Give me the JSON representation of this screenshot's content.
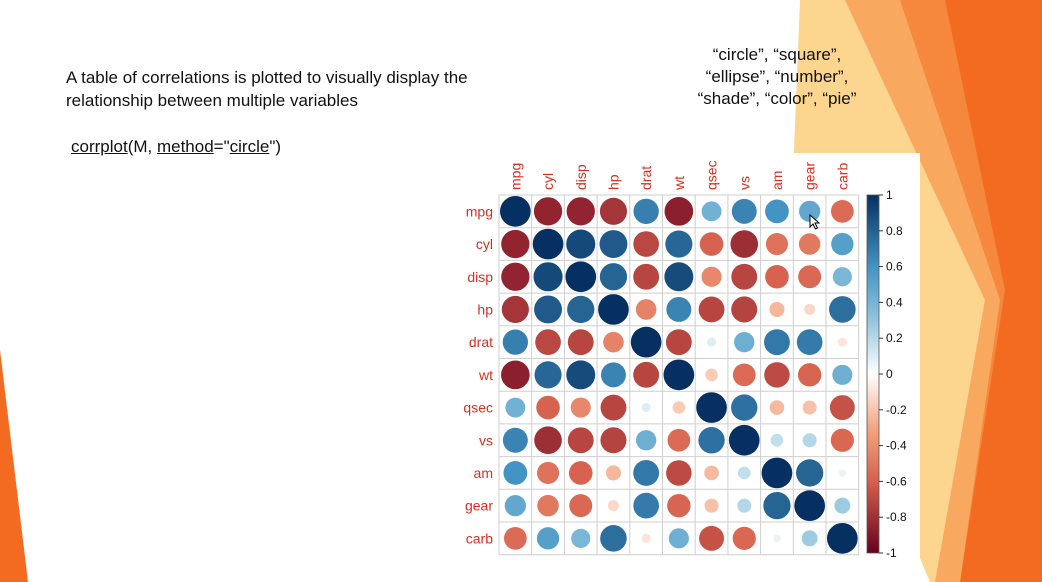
{
  "slide": {
    "description_line1": "A table of correlations is plotted to visually display the",
    "description_line2": "relationship between multiple variables",
    "code_func": "corrplot",
    "code_open": "(M, ",
    "code_arg": "method",
    "code_eq": "=\"",
    "code_val": "circle",
    "code_close": "\")",
    "methods_line1": "“circle”, “square”,",
    "methods_line2": "“ellipse”, “number”,",
    "methods_line3": "“shade”, “color”, “pie”"
  },
  "colors": {
    "accent_orange": "#f26b21",
    "accent_yellow": "#f9b233",
    "label_red": "#d7301f"
  },
  "chart_data": {
    "type": "heatmap",
    "style": "corrplot-circle",
    "variables": [
      "mpg",
      "cyl",
      "disp",
      "hp",
      "drat",
      "wt",
      "qsec",
      "vs",
      "am",
      "gear",
      "carb"
    ],
    "matrix": [
      [
        1,
        -0.85,
        -0.85,
        -0.78,
        0.68,
        -0.87,
        0.42,
        0.66,
        0.6,
        0.48,
        -0.55
      ],
      [
        -0.85,
        1,
        0.9,
        0.83,
        -0.7,
        0.78,
        -0.59,
        -0.81,
        -0.52,
        -0.49,
        0.53
      ],
      [
        -0.85,
        0.9,
        1,
        0.79,
        -0.71,
        0.89,
        -0.43,
        -0.71,
        -0.59,
        -0.56,
        0.39
      ],
      [
        -0.78,
        0.83,
        0.79,
        1,
        -0.45,
        0.66,
        -0.71,
        -0.72,
        -0.24,
        -0.13,
        0.75
      ],
      [
        0.68,
        -0.7,
        -0.71,
        -0.45,
        1,
        -0.71,
        0.09,
        0.44,
        0.71,
        0.7,
        -0.09
      ],
      [
        -0.87,
        0.78,
        0.89,
        0.66,
        -0.71,
        1,
        -0.17,
        -0.55,
        -0.69,
        -0.58,
        0.43
      ],
      [
        0.42,
        -0.59,
        -0.43,
        -0.71,
        0.09,
        -0.17,
        1,
        0.74,
        -0.23,
        -0.21,
        -0.66
      ],
      [
        0.66,
        -0.81,
        -0.71,
        -0.72,
        0.44,
        -0.55,
        0.74,
        1,
        0.17,
        0.21,
        -0.57
      ],
      [
        0.6,
        -0.52,
        -0.59,
        -0.24,
        0.71,
        -0.69,
        -0.23,
        0.17,
        1,
        0.79,
        0.06
      ],
      [
        0.48,
        -0.49,
        -0.56,
        -0.13,
        0.7,
        -0.58,
        -0.21,
        0.21,
        0.79,
        1,
        0.27
      ],
      [
        -0.55,
        0.53,
        0.39,
        0.75,
        -0.09,
        0.43,
        -0.66,
        -0.57,
        0.06,
        0.27,
        1
      ]
    ],
    "colorbar": {
      "range": [
        -1,
        1
      ],
      "ticks": [
        "1",
        "0.8",
        "0.6",
        "0.4",
        "0.2",
        "0",
        "-0.2",
        "-0.4",
        "-0.6",
        "-0.8",
        "-1"
      ]
    }
  }
}
